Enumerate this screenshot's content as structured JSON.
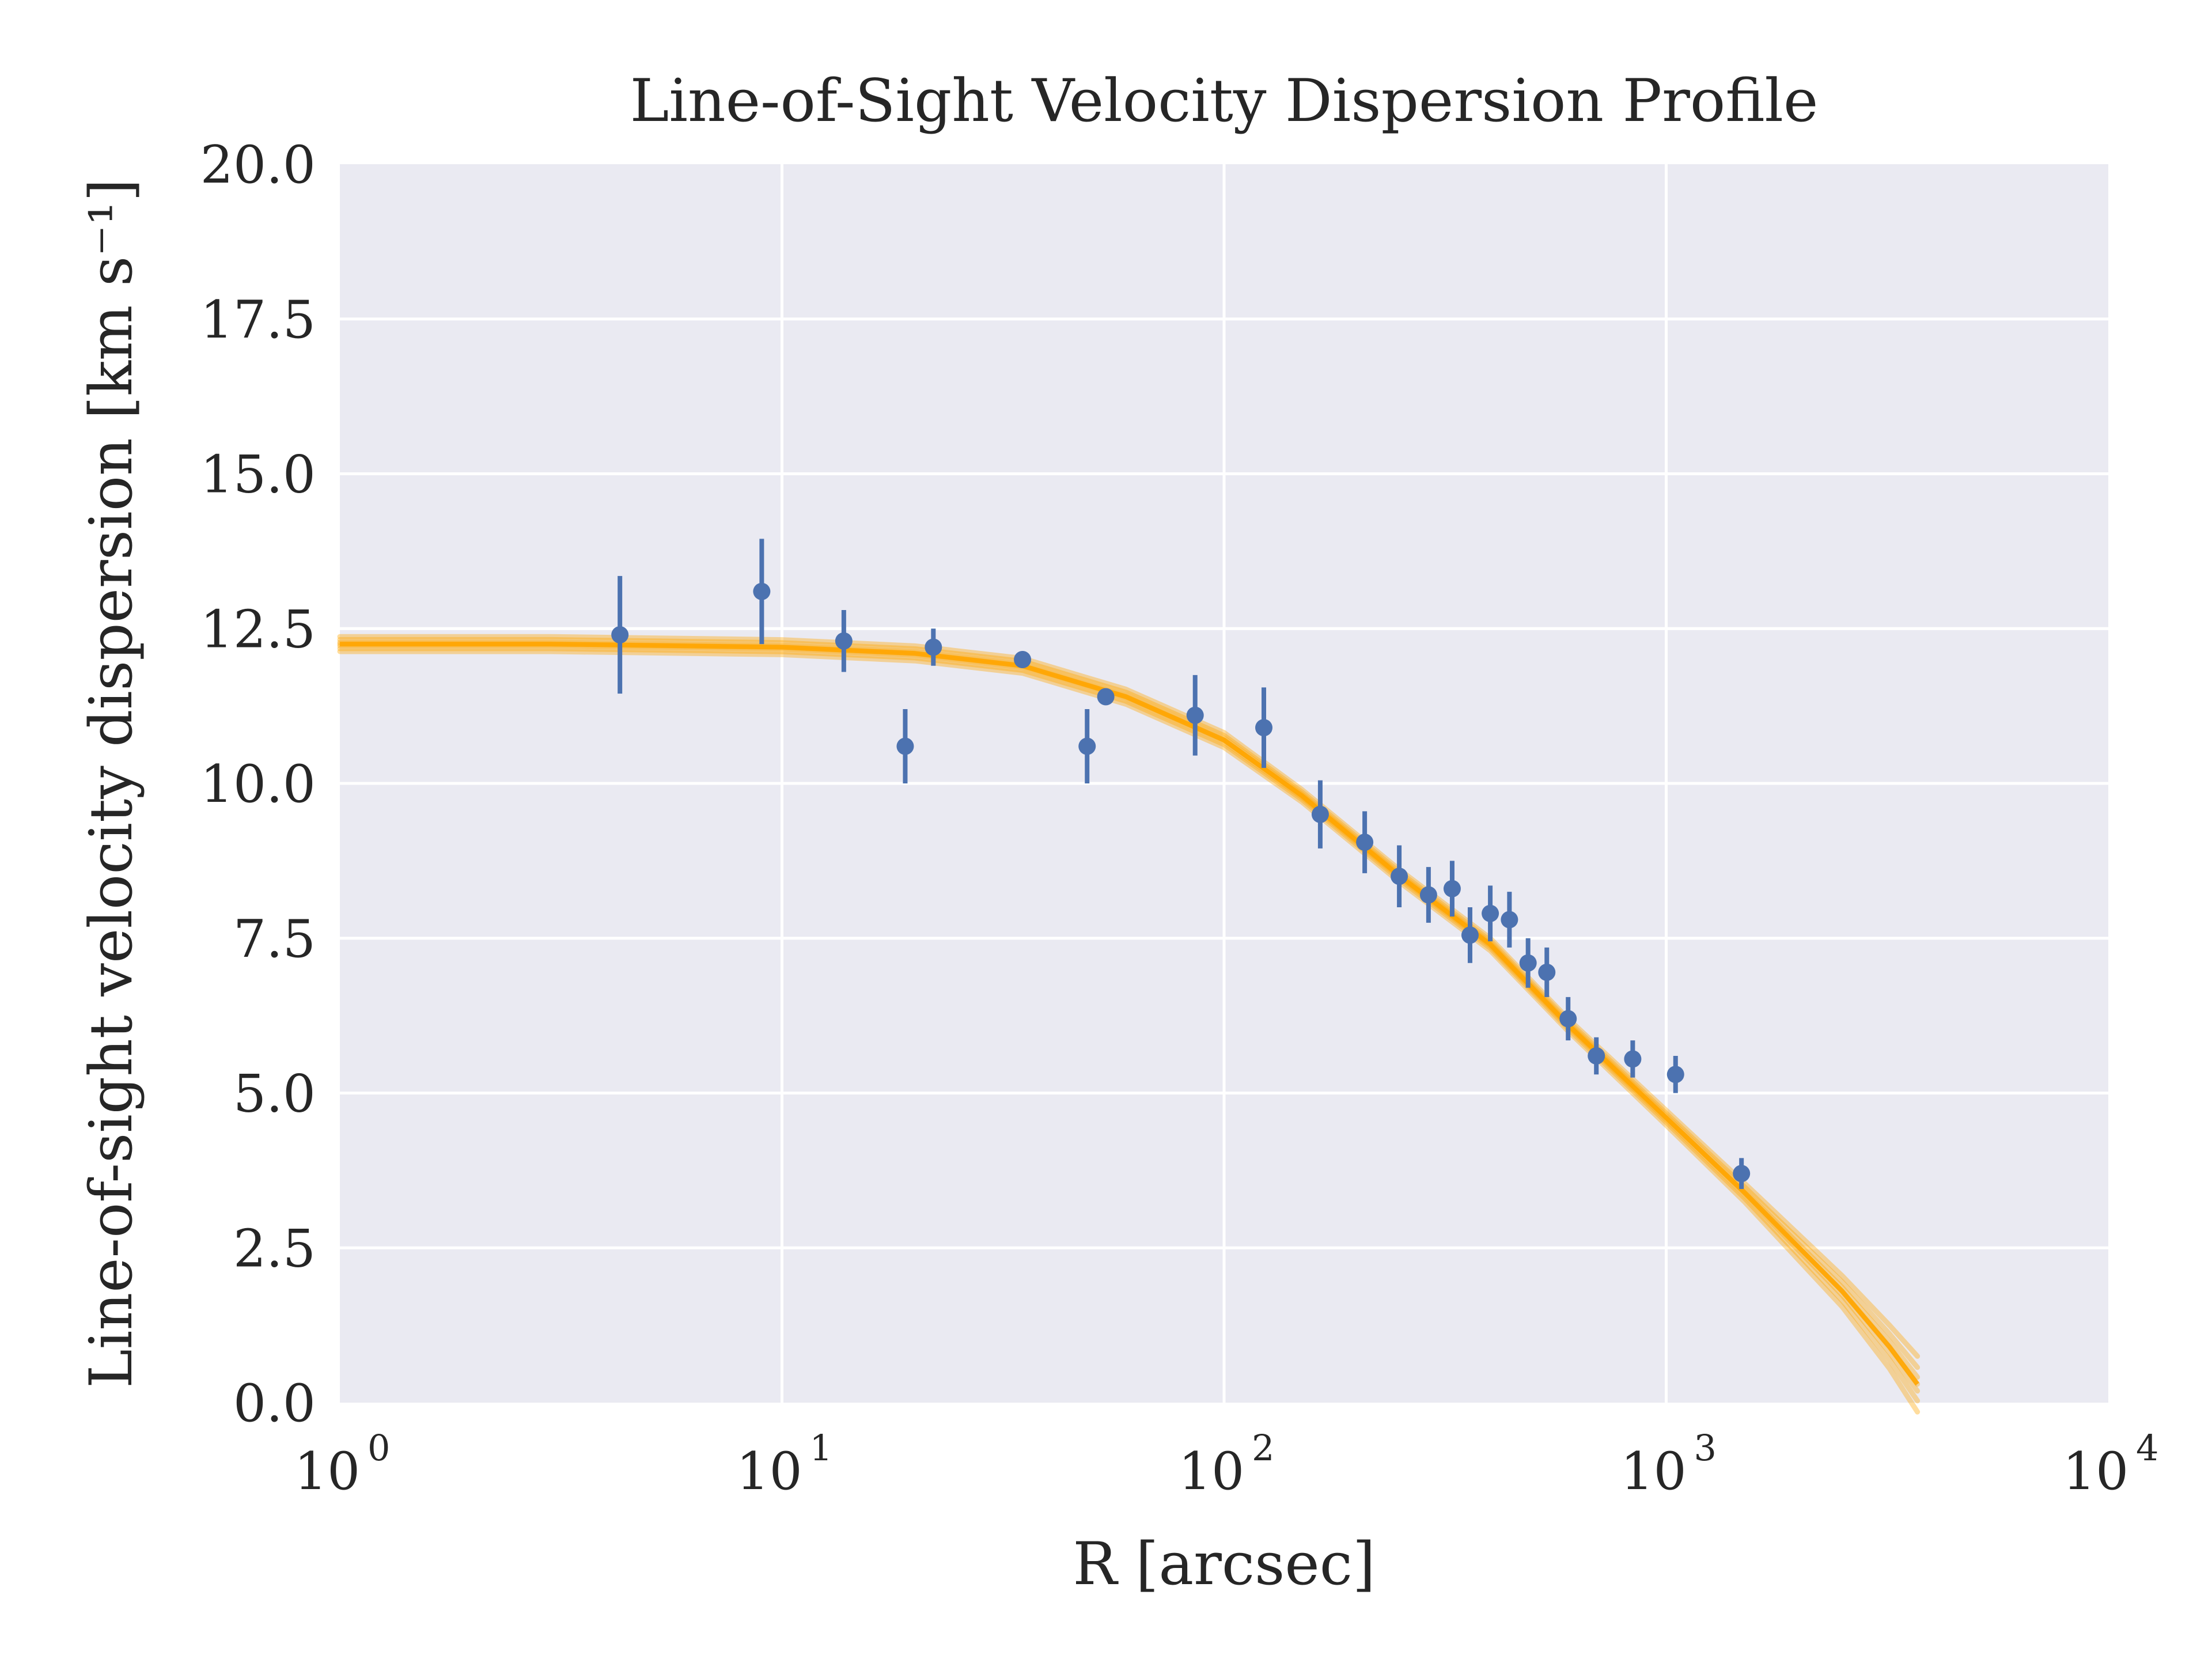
{
  "chart_data": {
    "type": "scatter",
    "title": "Line-of-Sight Velocity Dispersion Profile",
    "xlabel": "R [arcsec]",
    "ylabel": "Line-of-sight velocity dispersion [km s⁻¹]",
    "xscale": "log",
    "xlim": [
      1,
      10000
    ],
    "ylim": [
      0.0,
      20.0
    ],
    "grid": true,
    "x_ticks": [
      {
        "value": 1,
        "base": "10",
        "exp": "0"
      },
      {
        "value": 10,
        "base": "10",
        "exp": "1"
      },
      {
        "value": 100,
        "base": "10",
        "exp": "2"
      },
      {
        "value": 1000,
        "base": "10",
        "exp": "3"
      },
      {
        "value": 10000,
        "base": "10",
        "exp": "4"
      }
    ],
    "y_ticks": [
      "0.0",
      "2.5",
      "5.0",
      "7.5",
      "10.0",
      "12.5",
      "15.0",
      "17.5",
      "20.0"
    ],
    "colors": {
      "background": "#eaeaf2",
      "grid": "#ffffff",
      "points": "#4c72b0",
      "model": "#ffa500"
    },
    "points": [
      {
        "x": 4.3,
        "y": 12.4,
        "yerr": 0.95
      },
      {
        "x": 9.0,
        "y": 13.1,
        "yerr": 0.85
      },
      {
        "x": 13.8,
        "y": 12.3,
        "yerr": 0.5
      },
      {
        "x": 19.0,
        "y": 10.6,
        "yerr": 0.6
      },
      {
        "x": 22.0,
        "y": 12.2,
        "yerr": 0.3
      },
      {
        "x": 35.0,
        "y": 12.0,
        "yerr": 0.12
      },
      {
        "x": 49.0,
        "y": 10.6,
        "yerr": 0.6
      },
      {
        "x": 54.0,
        "y": 11.4,
        "yerr": 0.1
      },
      {
        "x": 86.0,
        "y": 11.1,
        "yerr": 0.65
      },
      {
        "x": 123.0,
        "y": 10.9,
        "yerr": 0.65
      },
      {
        "x": 165.0,
        "y": 9.5,
        "yerr": 0.55
      },
      {
        "x": 208.0,
        "y": 9.05,
        "yerr": 0.5
      },
      {
        "x": 249.0,
        "y": 8.5,
        "yerr": 0.5
      },
      {
        "x": 290.0,
        "y": 8.2,
        "yerr": 0.45
      },
      {
        "x": 328.0,
        "y": 8.3,
        "yerr": 0.45
      },
      {
        "x": 360.0,
        "y": 7.55,
        "yerr": 0.45
      },
      {
        "x": 400.0,
        "y": 7.9,
        "yerr": 0.45
      },
      {
        "x": 442.0,
        "y": 7.8,
        "yerr": 0.45
      },
      {
        "x": 487.0,
        "y": 7.1,
        "yerr": 0.4
      },
      {
        "x": 537.0,
        "y": 6.95,
        "yerr": 0.4
      },
      {
        "x": 600.0,
        "y": 6.2,
        "yerr": 0.35
      },
      {
        "x": 695.0,
        "y": 5.6,
        "yerr": 0.3
      },
      {
        "x": 840.0,
        "y": 5.55,
        "yerr": 0.3
      },
      {
        "x": 1050.0,
        "y": 5.3,
        "yerr": 0.3
      },
      {
        "x": 1480.0,
        "y": 3.7,
        "yerr": 0.25
      }
    ],
    "model_band": [
      {
        "x": 1.0,
        "y": 12.25,
        "spread": 0.12
      },
      {
        "x": 3.0,
        "y": 12.25,
        "spread": 0.12
      },
      {
        "x": 10.0,
        "y": 12.2,
        "spread": 0.12
      },
      {
        "x": 20.0,
        "y": 12.1,
        "spread": 0.12
      },
      {
        "x": 35.0,
        "y": 11.9,
        "spread": 0.12
      },
      {
        "x": 60.0,
        "y": 11.4,
        "spread": 0.12
      },
      {
        "x": 100.0,
        "y": 10.7,
        "spread": 0.12
      },
      {
        "x": 150.0,
        "y": 9.8,
        "spread": 0.1
      },
      {
        "x": 250.0,
        "y": 8.5,
        "spread": 0.1
      },
      {
        "x": 400.0,
        "y": 7.4,
        "spread": 0.1
      },
      {
        "x": 600.0,
        "y": 6.1,
        "spread": 0.1
      },
      {
        "x": 1000.0,
        "y": 4.6,
        "spread": 0.12
      },
      {
        "x": 1500.0,
        "y": 3.4,
        "spread": 0.15
      },
      {
        "x": 2500.0,
        "y": 1.8,
        "spread": 0.25
      },
      {
        "x": 3200.0,
        "y": 0.9,
        "spread": 0.35
      },
      {
        "x": 3700.0,
        "y": 0.3,
        "spread": 0.45
      }
    ]
  }
}
